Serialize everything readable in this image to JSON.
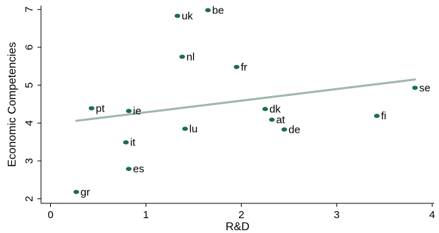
{
  "chart_data": {
    "type": "scatter",
    "title": "",
    "xlabel": "R&D",
    "ylabel": "Economic Competencies",
    "xlim": [
      -0.1,
      4.02
    ],
    "ylim": [
      1.88,
      7.1
    ],
    "xticks": [
      0,
      1,
      2,
      3,
      4
    ],
    "yticks": [
      2,
      3,
      4,
      5,
      6,
      7
    ],
    "grid": false,
    "point_color": "#1a6e4e",
    "fit_line_color": "#9fb8a8",
    "points": [
      {
        "label": "be",
        "x": 1.65,
        "y": 6.98
      },
      {
        "label": "uk",
        "x": 1.33,
        "y": 6.83
      },
      {
        "label": "nl",
        "x": 1.38,
        "y": 5.75
      },
      {
        "label": "fr",
        "x": 1.95,
        "y": 5.48
      },
      {
        "label": "se",
        "x": 3.82,
        "y": 4.93
      },
      {
        "label": "pt",
        "x": 0.43,
        "y": 4.39
      },
      {
        "label": "ie",
        "x": 0.82,
        "y": 4.32
      },
      {
        "label": "dk",
        "x": 2.25,
        "y": 4.37
      },
      {
        "label": "fi",
        "x": 3.42,
        "y": 4.19
      },
      {
        "label": "at",
        "x": 2.32,
        "y": 4.09
      },
      {
        "label": "lu",
        "x": 1.41,
        "y": 3.85
      },
      {
        "label": "de",
        "x": 2.45,
        "y": 3.83
      },
      {
        "label": "it",
        "x": 0.79,
        "y": 3.49
      },
      {
        "label": "es",
        "x": 0.82,
        "y": 2.79
      },
      {
        "label": "gr",
        "x": 0.27,
        "y": 2.18
      }
    ],
    "fit_line": {
      "x": [
        0.27,
        3.82
      ],
      "y": [
        4.06,
        5.15
      ]
    }
  }
}
